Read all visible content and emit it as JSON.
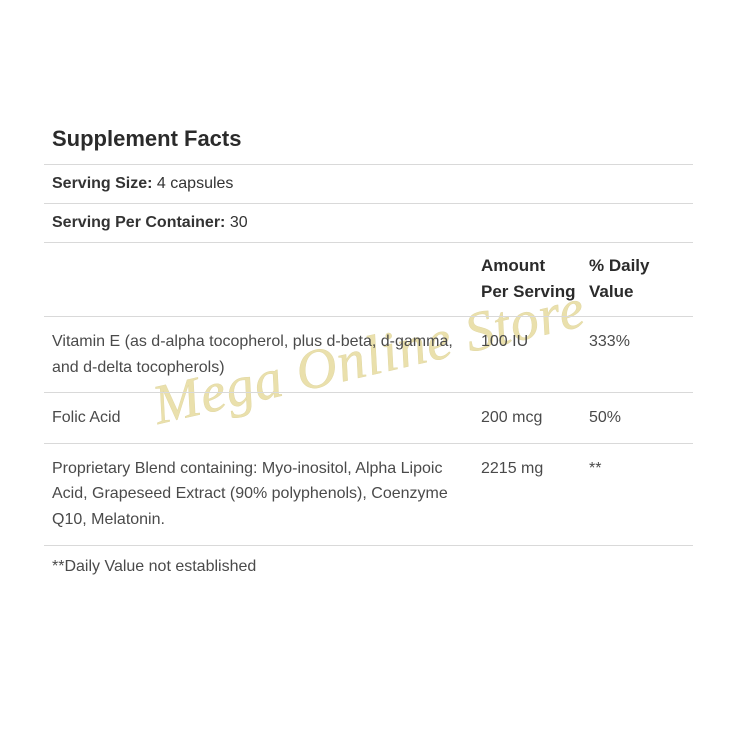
{
  "title": "Supplement Facts",
  "serving_size": {
    "label": "Serving Size:",
    "value": " 4 capsules"
  },
  "serving_per_container": {
    "label": "Serving Per Container:",
    "value": " 30"
  },
  "columns": {
    "name": "",
    "amount": "Amount Per Serving",
    "dv": "% Daily Value"
  },
  "rows": [
    {
      "name": "Vitamin E (as d-alpha tocopherol, plus d-beta, d-gamma, and d-delta tocopherols)",
      "amount": "100 IU",
      "dv": "333%"
    },
    {
      "name": "Folic Acid",
      "amount": "200 mcg",
      "dv": "50%"
    },
    {
      "name": "Proprietary Blend containing: Myo-inositol, Alpha Lipoic Acid, Grapeseed Extract (90% polyphenols), Coenzyme Q10, Melatonin.",
      "amount": "2215 mg",
      "dv": "**"
    }
  ],
  "footnote": "**Daily Value not established",
  "watermark": "Mega Online Store",
  "colors": {
    "text": "#333333",
    "muted": "#4a4a4a",
    "border": "#d9d9d9",
    "watermark": "#d9c86a",
    "background": "#ffffff"
  },
  "fonts": {
    "title_size_pt": 17,
    "body_size_pt": 12,
    "watermark_size_pt": 42
  }
}
